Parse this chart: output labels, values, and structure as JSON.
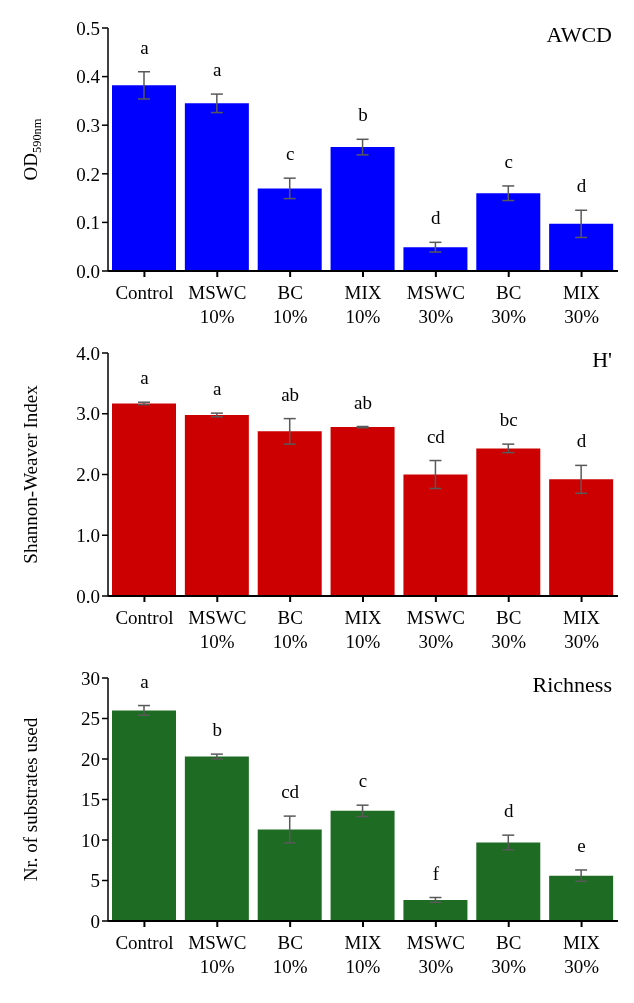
{
  "chart_data": [
    {
      "type": "bar",
      "title": "AWCD",
      "ylabel": "OD$_{590nm}$",
      "categories": [
        "Control",
        "MSWC 10%",
        "BC 10%",
        "MIX 10%",
        "MSWC 30%",
        "BC 30%",
        "MIX 30%"
      ],
      "values": [
        0.382,
        0.345,
        0.17,
        0.255,
        0.049,
        0.16,
        0.097
      ],
      "errors": [
        0.028,
        0.019,
        0.021,
        0.016,
        0.01,
        0.015,
        0.028
      ],
      "color": "#0000ff",
      "ylim": [
        0,
        0.5
      ],
      "yticks": [
        {
          "value": 0,
          "label": "0.0"
        },
        0.1,
        0.2,
        0.3,
        0.4,
        0.5
      ],
      "grid": false,
      "legend": false,
      "annotations": [
        {
          "text": "a",
          "x": "Control",
          "y": 0.382
        },
        {
          "text": "a",
          "x": "MSWC 10%",
          "y": 0.345
        },
        {
          "text": "c",
          "x": "BC 10%",
          "y": 0.17
        },
        {
          "text": "b",
          "x": "MIX 10%",
          "y": 0.255
        },
        {
          "text": "d",
          "x": "MSWC 30%",
          "y": 0.049
        },
        {
          "text": "c",
          "x": "BC 30%",
          "y": 0.16
        },
        {
          "text": "d",
          "x": "MIX 30%",
          "y": 0.097
        }
      ]
    },
    {
      "type": "bar",
      "title": "H'",
      "ylabel": "Shannon-Weaver Index",
      "categories": [
        "Control",
        "MSWC 10%",
        "BC 10%",
        "MIX 10%",
        "MSWC 30%",
        "BC 30%",
        "MIX 30%"
      ],
      "values": [
        3.17,
        2.98,
        2.71,
        2.78,
        2.0,
        2.43,
        1.92
      ],
      "errors": [
        0.02,
        0.03,
        0.21,
        0.01,
        0.23,
        0.07,
        0.23
      ],
      "color": "#cc0000",
      "ylim": [
        0,
        4
      ],
      "yticks": [
        {
          "value": 0,
          "label": "0.0"
        },
        {
          "value": 1,
          "label": "1.0"
        },
        {
          "value": 2,
          "label": "2.0"
        },
        {
          "value": 3,
          "label": "3.0"
        },
        {
          "value": 4,
          "label": "4.0"
        }
      ],
      "grid": false,
      "legend": false,
      "annotations": [
        {
          "text": "a",
          "x": "Control",
          "y": 3.17
        },
        {
          "text": "a",
          "x": "MSWC 10%",
          "y": 2.98
        },
        {
          "text": "ab",
          "x": "BC 10%",
          "y": 2.71
        },
        {
          "text": "ab",
          "x": "MIX 10%",
          "y": 2.78
        },
        {
          "text": "cd",
          "x": "MSWC 30%",
          "y": 2.0
        },
        {
          "text": "bc",
          "x": "BC 30%",
          "y": 2.43
        },
        {
          "text": "d",
          "x": "MIX 30%",
          "y": 1.92
        }
      ]
    },
    {
      "type": "bar",
      "title": "Richness",
      "ylabel": "Nr. of substrates used",
      "categories": [
        "Control",
        "MSWC 10%",
        "BC 10%",
        "MIX 10%",
        "MSWC 30%",
        "BC 30%",
        "MIX 30%"
      ],
      "values": [
        26.0,
        20.3,
        11.3,
        13.6,
        2.6,
        9.7,
        5.6
      ],
      "errors": [
        0.6,
        0.3,
        1.65,
        0.7,
        0.3,
        0.9,
        0.7
      ],
      "color": "#1e6b23",
      "ylim": [
        0,
        30
      ],
      "yticks": [
        0,
        5,
        10,
        15,
        20,
        25,
        30
      ],
      "grid": false,
      "legend": false,
      "annotations": [
        {
          "text": "a",
          "x": "Control",
          "y": 26.0
        },
        {
          "text": "b",
          "x": "MSWC 10%",
          "y": 20.3
        },
        {
          "text": "cd",
          "x": "BC 10%",
          "y": 11.3
        },
        {
          "text": "c",
          "x": "MIX 10%",
          "y": 13.6
        },
        {
          "text": "f",
          "x": "MSWC 30%",
          "y": 2.6
        },
        {
          "text": "d",
          "x": "BC 30%",
          "y": 9.7
        },
        {
          "text": "e",
          "x": "MIX 30%",
          "y": 5.6
        }
      ]
    }
  ]
}
